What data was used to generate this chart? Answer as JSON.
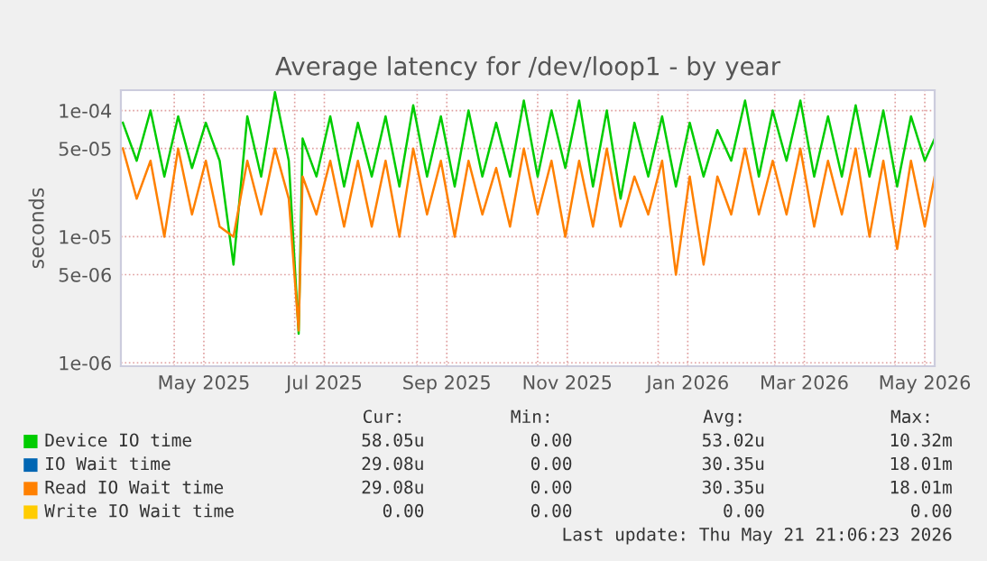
{
  "chart_data": {
    "type": "line",
    "title": "Average latency for /dev/loop1 - by year",
    "ylabel": "seconds",
    "log": "y",
    "grid": true,
    "legend": "bottom",
    "marker": "none",
    "line_style": "solid",
    "x": [
      "2025-04-05",
      "2025-04-12",
      "2025-04-19",
      "2025-04-26",
      "2025-05-03",
      "2025-05-10",
      "2025-05-17",
      "2025-05-24",
      "2025-05-31",
      "2025-06-07",
      "2025-06-14",
      "2025-06-21",
      "2025-06-28",
      "2025-07-03",
      "2025-07-05",
      "2025-07-12",
      "2025-07-19",
      "2025-07-26",
      "2025-08-02",
      "2025-08-09",
      "2025-08-16",
      "2025-08-23",
      "2025-08-30",
      "2025-09-06",
      "2025-09-13",
      "2025-09-20",
      "2025-09-27",
      "2025-10-04",
      "2025-10-11",
      "2025-10-18",
      "2025-10-25",
      "2025-11-01",
      "2025-11-08",
      "2025-11-15",
      "2025-11-22",
      "2025-11-29",
      "2025-12-06",
      "2025-12-13",
      "2025-12-20",
      "2025-12-27",
      "2026-01-03",
      "2026-01-10",
      "2026-01-17",
      "2026-01-24",
      "2026-01-31",
      "2026-02-07",
      "2026-02-14",
      "2026-02-21",
      "2026-02-28",
      "2026-03-07",
      "2026-03-14",
      "2026-03-21",
      "2026-03-28",
      "2026-04-04",
      "2026-04-11",
      "2026-04-18",
      "2026-04-25",
      "2026-05-02",
      "2026-05-09",
      "2026-05-16",
      "2026-05-21"
    ],
    "xlim": [
      "2025-04-04",
      "2026-05-21"
    ],
    "xticks": [
      {
        "value": "2025-05-01",
        "label": null
      },
      {
        "value": "2025-05-16",
        "label": "May 2025"
      },
      {
        "value": "2025-07-01",
        "label": null
      },
      {
        "value": "2025-07-16",
        "label": "Jul 2025"
      },
      {
        "value": "2025-09-01",
        "label": null
      },
      {
        "value": "2025-09-16",
        "label": "Sep 2025"
      },
      {
        "value": "2025-11-01",
        "label": null
      },
      {
        "value": "2025-11-16",
        "label": "Nov 2025"
      },
      {
        "value": "2026-01-01",
        "label": null
      },
      {
        "value": "2026-01-16",
        "label": "Jan 2026"
      },
      {
        "value": "2026-03-01",
        "label": null
      },
      {
        "value": "2026-03-16",
        "label": "Mar 2026"
      },
      {
        "value": "2026-05-01",
        "label": null
      },
      {
        "value": "2026-05-16",
        "label": "May 2026"
      }
    ],
    "ylim": [
      9.4e-07,
      0.000145
    ],
    "yticks": [
      {
        "value": 1e-06,
        "label": "1e-06"
      },
      {
        "value": 5e-06,
        "label": "5e-06"
      },
      {
        "value": 1e-05,
        "label": "1e-05"
      },
      {
        "value": 5e-05,
        "label": "5e-05"
      },
      {
        "value": 0.0001,
        "label": "1e-04"
      }
    ],
    "series": [
      {
        "name": "Device IO time",
        "color": "#00cc00",
        "values": [
          8e-05,
          4e-05,
          0.0001,
          3e-05,
          9e-05,
          3.5e-05,
          8e-05,
          4e-05,
          6e-06,
          9e-05,
          3e-05,
          0.00014,
          4e-05,
          1.7e-06,
          6e-05,
          3e-05,
          9e-05,
          2.5e-05,
          8e-05,
          3e-05,
          9e-05,
          2.5e-05,
          0.00011,
          3e-05,
          9e-05,
          2.5e-05,
          0.0001,
          3e-05,
          8e-05,
          3e-05,
          0.00012,
          3e-05,
          0.0001,
          3.5e-05,
          0.00012,
          2.5e-05,
          0.0001,
          2e-05,
          8e-05,
          3e-05,
          9e-05,
          2.5e-05,
          8e-05,
          3e-05,
          7e-05,
          4e-05,
          0.00012,
          3e-05,
          0.0001,
          4e-05,
          0.00012,
          3e-05,
          9e-05,
          3e-05,
          0.00011,
          3e-05,
          0.0001,
          2.5e-05,
          9e-05,
          4e-05,
          6e-05
        ]
      },
      {
        "name": "IO Wait time",
        "color": "#0066b3",
        "values": [
          null,
          null,
          null,
          null,
          null,
          null,
          null,
          null,
          null,
          null,
          null,
          null,
          null,
          null,
          null,
          null,
          null,
          null,
          null,
          null,
          null,
          null,
          null,
          null,
          null,
          null,
          null,
          null,
          null,
          null,
          null,
          null,
          null,
          null,
          null,
          null,
          null,
          null,
          null,
          null,
          null,
          null,
          null,
          null,
          null,
          null,
          null,
          null,
          null,
          null,
          null,
          null,
          null,
          null,
          null,
          null,
          null,
          null,
          null,
          null,
          null
        ]
      },
      {
        "name": "Read IO Wait time",
        "color": "#ff8000",
        "values": [
          5e-05,
          2e-05,
          4e-05,
          1e-05,
          5e-05,
          1.5e-05,
          4e-05,
          1.2e-05,
          1e-05,
          4e-05,
          1.5e-05,
          5e-05,
          2e-05,
          1.8e-06,
          3e-05,
          1.5e-05,
          4e-05,
          1.2e-05,
          4e-05,
          1.2e-05,
          4e-05,
          1e-05,
          5e-05,
          1.5e-05,
          4e-05,
          1e-05,
          4e-05,
          1.5e-05,
          3.5e-05,
          1.2e-05,
          5e-05,
          1.5e-05,
          4e-05,
          1e-05,
          4e-05,
          1.2e-05,
          5e-05,
          1.2e-05,
          3e-05,
          1.5e-05,
          4e-05,
          5e-06,
          3e-05,
          6e-06,
          3e-05,
          1.5e-05,
          5e-05,
          1.5e-05,
          4e-05,
          1.5e-05,
          5e-05,
          1.2e-05,
          4e-05,
          1.5e-05,
          5e-05,
          1e-05,
          4e-05,
          8e-06,
          4e-05,
          1.2e-05,
          3e-05
        ]
      },
      {
        "name": "Write IO Wait time",
        "color": "#ffcc00",
        "values": [
          null,
          null,
          null,
          null,
          null,
          null,
          null,
          null,
          null,
          null,
          null,
          null,
          null,
          null,
          null,
          null,
          null,
          null,
          null,
          null,
          null,
          null,
          null,
          null,
          null,
          null,
          null,
          null,
          null,
          null,
          null,
          null,
          null,
          null,
          null,
          null,
          null,
          null,
          null,
          null,
          null,
          null,
          null,
          null,
          null,
          null,
          null,
          null,
          null,
          null,
          null,
          null,
          null,
          null,
          null,
          null,
          null,
          null,
          null,
          null,
          null
        ]
      }
    ],
    "annotations": [
      "Cur:",
      "Min:",
      "Avg:",
      "Max:",
      "58.05u",
      "0.00",
      "53.02u",
      "10.32m",
      "29.08u",
      "0.00",
      "30.35u",
      "18.01m",
      "29.08u",
      "0.00",
      "30.35u",
      "18.01m",
      "0.00",
      "0.00",
      "0.00",
      "0.00",
      "Last update: Thu May 21 21:06:23 2026"
    ]
  }
}
